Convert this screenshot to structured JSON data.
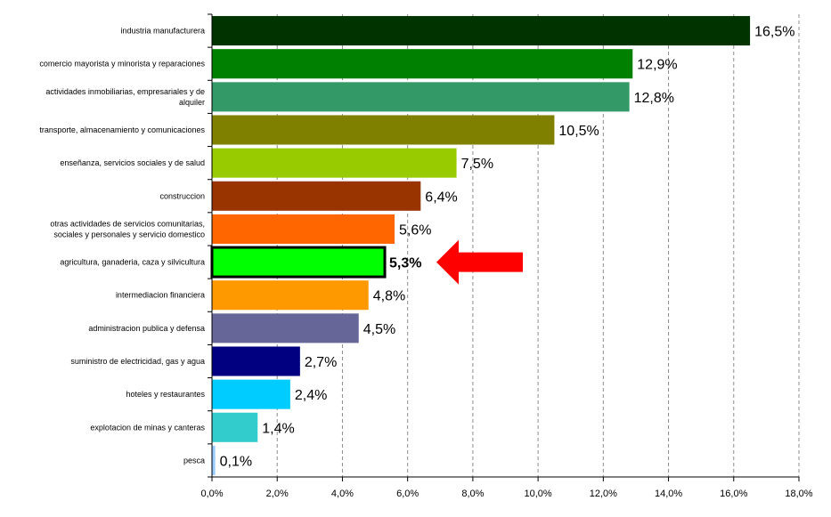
{
  "chart_data": {
    "type": "bar",
    "orientation": "horizontal",
    "categories": [
      "industria manufacturera",
      "comercio mayorista y minorista y reparaciones",
      "actividades inmobiliarias, empresariales y de alquiler",
      "transporte, almacenamiento y comunicaciones",
      "enseñanza, servicios sociales y de salud",
      "construccion",
      "otras actividades de servicios comunitarias, sociales y personales y servicio domestico",
      "agricultura, ganaderia, caza y silvicultura",
      "intermediacion financiera",
      "administracion publica y defensa",
      "suministro de electricidad, gas y agua",
      "hoteles y restaurantes",
      "explotacion de minas y canteras",
      "pesca"
    ],
    "category_lines": [
      [
        "industria manufacturera"
      ],
      [
        "comercio mayorista y minorista y reparaciones"
      ],
      [
        "actividades inmobiliarias, empresariales y de",
        "alquiler"
      ],
      [
        "transporte, almacenamiento y comunicaciones"
      ],
      [
        "enseñanza, servicios sociales y de salud"
      ],
      [
        "construccion"
      ],
      [
        "otras actividades de servicios comunitarias,",
        "sociales y personales y servicio domestico"
      ],
      [
        "agricultura, ganaderia, caza y silvicultura"
      ],
      [
        "intermediacion financiera"
      ],
      [
        "administracion publica y defensa"
      ],
      [
        "suministro de electricidad, gas y agua"
      ],
      [
        "hoteles y restaurantes"
      ],
      [
        "explotacion de minas y canteras"
      ],
      [
        "pesca"
      ]
    ],
    "values": [
      16.5,
      12.9,
      12.8,
      10.5,
      7.5,
      6.4,
      5.6,
      5.3,
      4.8,
      4.5,
      2.7,
      2.4,
      1.4,
      0.1
    ],
    "value_labels": [
      "16,5%",
      "12,9%",
      "12,8%",
      "10,5%",
      "7,5%",
      "6,4%",
      "5,6%",
      "5,3%",
      "4,8%",
      "4,5%",
      "2,7%",
      "2,4%",
      "1,4%",
      "0,1%"
    ],
    "colors": [
      "#003300",
      "#008000",
      "#339966",
      "#808000",
      "#99CC00",
      "#993300",
      "#FF6600",
      "#00FF00",
      "#FF9900",
      "#666699",
      "#000080",
      "#00CCFF",
      "#33CCCC",
      "#99CCFF"
    ],
    "highlight_index": 7,
    "highlight_marker": {
      "type": "arrow",
      "color": "#FF0000",
      "direction": "left"
    },
    "xlim": [
      0,
      18
    ],
    "x_ticks": [
      0,
      2,
      4,
      6,
      8,
      10,
      12,
      14,
      16,
      18
    ],
    "x_tick_labels": [
      "0,0%",
      "2,0%",
      "4,0%",
      "6,0%",
      "8,0%",
      "10,0%",
      "12,0%",
      "14,0%",
      "16,0%",
      "18,0%"
    ],
    "grid": "vertical dashed",
    "legend": "none",
    "title": "",
    "xlabel": "",
    "ylabel": ""
  }
}
